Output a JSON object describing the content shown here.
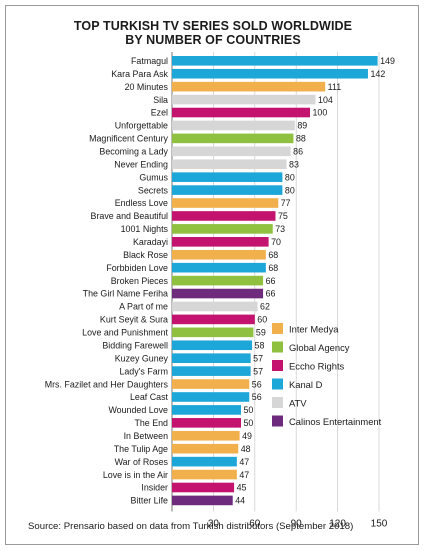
{
  "chart_data": {
    "type": "bar",
    "orientation": "horizontal",
    "title": "TOP TURKISH TV SERIES SOLD WORLDWIDE",
    "subtitle": "BY NUMBER OF COUNTRIES",
    "xlim": [
      0,
      150
    ],
    "xticks": [
      30,
      60,
      90,
      120,
      150
    ],
    "grid": true,
    "legend_position": "lower-right",
    "series": [
      {
        "name": "Inter Medya",
        "color": "#f2b04c"
      },
      {
        "name": "Global Agency",
        "color": "#8fc03f"
      },
      {
        "name": "Eccho Rights",
        "color": "#c4136f"
      },
      {
        "name": "Kanal D",
        "color": "#1da6d8"
      },
      {
        "name": "ATV",
        "color": "#d6d6d6"
      },
      {
        "name": "Calinos Entertainment",
        "color": "#6e2b7e"
      }
    ],
    "bars": [
      {
        "label": "Fatmagul",
        "value": 149,
        "series": "Kanal D"
      },
      {
        "label": "Kara Para Ask",
        "value": 142,
        "series": "Kanal D"
      },
      {
        "label": "20 Minutes",
        "value": 111,
        "series": "Inter Medya"
      },
      {
        "label": "Sila",
        "value": 104,
        "series": "ATV"
      },
      {
        "label": "Ezel",
        "value": 100,
        "series": "Eccho Rights"
      },
      {
        "label": "Unforgettable",
        "value": 89,
        "series": "ATV"
      },
      {
        "label": "Magnificent Century",
        "value": 88,
        "series": "Global Agency"
      },
      {
        "label": "Becoming a Lady",
        "value": 86,
        "series": "ATV"
      },
      {
        "label": "Never Ending",
        "value": 83,
        "series": "ATV"
      },
      {
        "label": "Gumus",
        "value": 80,
        "series": "Kanal D"
      },
      {
        "label": "Secrets",
        "value": 80,
        "series": "Kanal D"
      },
      {
        "label": "Endless Love",
        "value": 77,
        "series": "Inter Medya"
      },
      {
        "label": "Brave and Beautiful",
        "value": 75,
        "series": "Eccho Rights"
      },
      {
        "label": "1001 Nights",
        "value": 73,
        "series": "Global Agency"
      },
      {
        "label": "Karadayi",
        "value": 70,
        "series": "Eccho Rights"
      },
      {
        "label": "Black Rose",
        "value": 68,
        "series": "Inter Medya"
      },
      {
        "label": "Forbbiden Love",
        "value": 68,
        "series": "Kanal D"
      },
      {
        "label": "Broken Pieces",
        "value": 66,
        "series": "Global Agency"
      },
      {
        "label": "The Girl Name Feriha",
        "value": 66,
        "series": "Calinos Entertainment"
      },
      {
        "label": "A Part of me",
        "value": 62,
        "series": "ATV"
      },
      {
        "label": "Kurt Seyit & Sura",
        "value": 60,
        "series": "Eccho Rights"
      },
      {
        "label": "Love and Punishment",
        "value": 59,
        "series": "Global Agency"
      },
      {
        "label": "Bidding Farewell",
        "value": 58,
        "series": "Kanal D"
      },
      {
        "label": "Kuzey Guney",
        "value": 57,
        "series": "Kanal D"
      },
      {
        "label": "Lady's Farm",
        "value": 57,
        "series": "Kanal D"
      },
      {
        "label": "Mrs. Fazilet and Her Daughters",
        "value": 56,
        "series": "Inter Medya"
      },
      {
        "label": "Leaf Cast",
        "value": 56,
        "series": "Kanal D"
      },
      {
        "label": "Wounded Love",
        "value": 50,
        "series": "Kanal D"
      },
      {
        "label": "The End",
        "value": 50,
        "series": "Eccho Rights"
      },
      {
        "label": "In Between",
        "value": 49,
        "series": "Inter Medya"
      },
      {
        "label": "The Tulip Age",
        "value": 48,
        "series": "Inter Medya"
      },
      {
        "label": "War of Roses",
        "value": 47,
        "series": "Kanal D"
      },
      {
        "label": "Love is in the Air",
        "value": 47,
        "series": "Inter Medya"
      },
      {
        "label": "Insider",
        "value": 45,
        "series": "Eccho Rights"
      },
      {
        "label": "Bitter Life",
        "value": 44,
        "series": "Calinos Entertainment"
      }
    ],
    "source": "Source: Prensario based on data from Turkish distributors (September 2018)"
  }
}
